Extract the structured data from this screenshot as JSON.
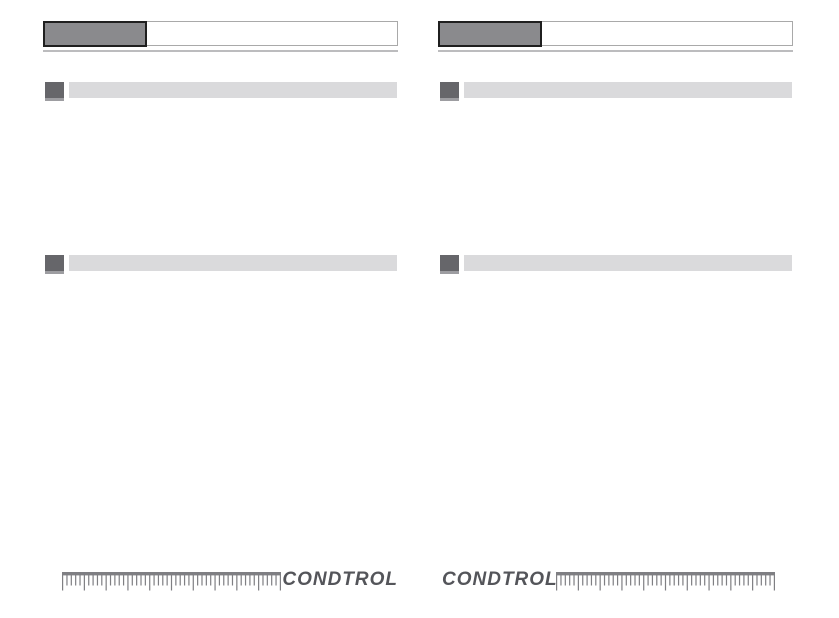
{
  "document": {
    "type": "manual-page-template",
    "brand": "CONDTROL",
    "background": "#ffffff"
  },
  "colors": {
    "header_tab_fill": "#8a8a8d",
    "header_tab_border": "#1f1f1f",
    "header_bar_border": "#a9a9a9",
    "header_rule": "#bcbcbe",
    "section_marker": "#66666a",
    "section_marker_base": "#9d9da1",
    "section_bar": "#dadadc",
    "ruler": "#7f7f83",
    "logo_text_color": "#54555a"
  },
  "columns": [
    {
      "side": "left",
      "header": {
        "tab_text": "",
        "bar_text": ""
      },
      "sections": [
        {
          "text": ""
        },
        {
          "text": ""
        }
      ],
      "footer": {
        "arrangement": "ruler-then-logo",
        "logo_text": "CONDTROL"
      }
    },
    {
      "side": "right",
      "header": {
        "tab_text": "",
        "bar_text": ""
      },
      "sections": [
        {
          "text": ""
        },
        {
          "text": ""
        }
      ],
      "footer": {
        "arrangement": "logo-then-ruler",
        "logo_text": "CONDTROL"
      }
    }
  ],
  "ruler": {
    "tick_intervals": 50,
    "long_tick_every": 5
  }
}
